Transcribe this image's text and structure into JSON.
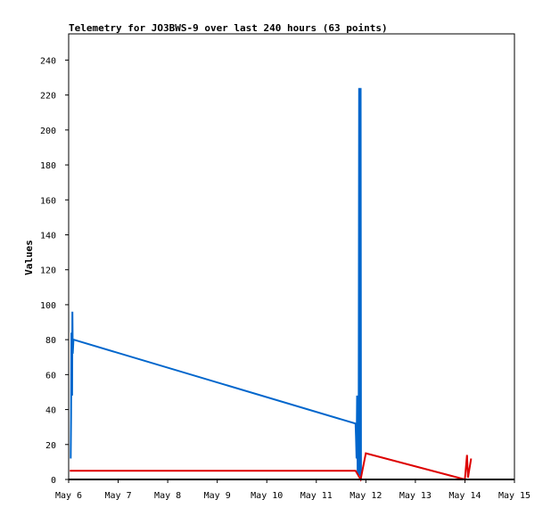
{
  "chart_data": {
    "type": "line",
    "title": "Telemetry for JO3BWS-9 over last 240 hours (63 points)",
    "ylabel": "Values",
    "xlabel": "",
    "x_axis": {
      "kind": "date",
      "ticks": [
        "May 6",
        "May 7",
        "May 8",
        "May 9",
        "May 10",
        "May 11",
        "May 12",
        "May 13",
        "May 14",
        "May 15"
      ],
      "range": [
        "May 6",
        "May 15"
      ]
    },
    "ylim": [
      0,
      255
    ],
    "yticks": [
      0,
      20,
      40,
      60,
      80,
      100,
      120,
      140,
      160,
      180,
      200,
      220,
      240
    ],
    "grid": false,
    "legend": "none",
    "series": [
      {
        "color": "#0066cc",
        "points": [
          [
            "2024-05-06 01:00",
            12
          ],
          [
            "2024-05-06 01:10",
            36
          ],
          [
            "2024-05-06 01:20",
            84
          ],
          [
            "2024-05-06 01:30",
            60
          ],
          [
            "2024-05-06 01:40",
            48
          ],
          [
            "2024-05-06 01:50",
            96
          ],
          [
            "2024-05-06 02:00",
            72
          ],
          [
            "2024-05-06 02:20",
            80
          ],
          [
            "2024-05-11 19:00",
            32
          ],
          [
            "2024-05-11 19:15",
            24
          ],
          [
            "2024-05-11 19:30",
            12
          ],
          [
            "2024-05-11 19:45",
            48
          ],
          [
            "2024-05-11 20:00",
            5
          ],
          [
            "2024-05-11 20:30",
            2
          ],
          [
            "2024-05-11 20:45",
            224
          ],
          [
            "2024-05-11 21:00",
            2
          ],
          [
            "2024-05-11 21:10",
            112
          ],
          [
            "2024-05-11 21:20",
            192
          ],
          [
            "2024-05-11 21:30",
            224
          ],
          [
            "2024-05-11 21:40",
            0
          ]
        ]
      },
      {
        "color": "#dd0000",
        "points": [
          [
            "2024-05-06 00:30",
            5
          ],
          [
            "2024-05-11 19:00",
            5
          ],
          [
            "2024-05-11 20:00",
            3
          ],
          [
            "2024-05-11 21:30",
            0
          ],
          [
            "2024-05-12 00:00",
            15
          ],
          [
            "2024-05-14 00:00",
            0
          ],
          [
            "2024-05-14 01:00",
            14
          ],
          [
            "2024-05-14 01:30",
            1
          ],
          [
            "2024-05-14 03:00",
            12
          ]
        ]
      },
      {
        "color": "#000000",
        "points": [
          [
            "2024-05-06 00:00",
            0
          ],
          [
            "2024-05-15 00:00",
            0
          ]
        ]
      }
    ]
  }
}
